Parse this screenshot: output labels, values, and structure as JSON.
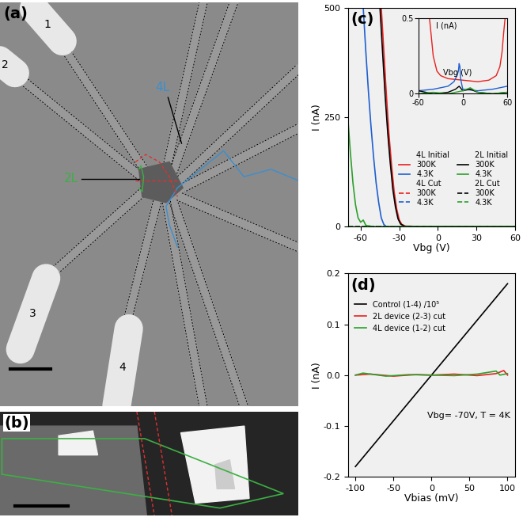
{
  "chart_data": [
    {
      "type": "line",
      "panel_label": "(c)",
      "x_label": "Vbg (V)",
      "y_label": "I (nA)",
      "xlim": [
        -70,
        60
      ],
      "ylim": [
        0,
        500
      ],
      "xticks": [
        -60,
        -30,
        0,
        30,
        60
      ],
      "yticks": [
        0,
        250,
        500
      ],
      "legend": "lower right",
      "legend_groups": [
        "4L Initial",
        "4L Cut",
        "2L Initial",
        "2L Cut"
      ],
      "series": [
        {
          "name": "300K",
          "group": "4L Initial",
          "color": "#e8201e",
          "line_style": "solid",
          "x": [
            -44,
            -42,
            -40,
            -38,
            -36,
            -34,
            -32,
            -30,
            -28,
            -25,
            0,
            30,
            60
          ],
          "values": [
            500,
            400,
            300,
            210,
            140,
            80,
            40,
            15,
            5,
            1,
            0,
            0,
            0
          ]
        },
        {
          "name": "4.3K",
          "group": "4L Initial",
          "color": "#1f5fd0",
          "line_style": "solid",
          "x": [
            -58,
            -56,
            -54,
            -52,
            -50,
            -48,
            -46,
            -44,
            -42,
            -40,
            0,
            60
          ],
          "values": [
            500,
            400,
            310,
            230,
            160,
            100,
            55,
            20,
            5,
            0,
            0,
            0
          ]
        },
        {
          "name": "300K",
          "group": "4L Cut",
          "color": "#e8201e",
          "line_style": "dashed",
          "x": [
            -70,
            60
          ],
          "values": [
            0,
            0
          ]
        },
        {
          "name": "4.3K",
          "group": "4L Cut",
          "color": "#1f5fd0",
          "line_style": "dashed",
          "x": [
            -70,
            60
          ],
          "values": [
            0,
            0
          ]
        },
        {
          "name": "300K",
          "group": "2L Initial",
          "color": "#000000",
          "line_style": "solid",
          "x": [
            -45,
            -43,
            -41,
            -39,
            -37,
            -35,
            -33,
            -31,
            -29,
            -26,
            0,
            30,
            60
          ],
          "values": [
            500,
            400,
            300,
            215,
            145,
            85,
            45,
            18,
            6,
            1,
            0,
            0,
            0
          ]
        },
        {
          "name": "4.3K",
          "group": "2L Initial",
          "color": "#2ca02c",
          "line_style": "solid",
          "x": [
            -70,
            -68,
            -66,
            -64,
            -62,
            -60,
            -58,
            -56,
            -50,
            0,
            60
          ],
          "values": [
            250,
            170,
            100,
            50,
            20,
            10,
            15,
            3,
            0,
            0,
            0
          ]
        },
        {
          "name": "300K",
          "group": "2L Cut",
          "color": "#000000",
          "line_style": "dashed",
          "x": [
            -70,
            60
          ],
          "values": [
            0,
            0
          ]
        },
        {
          "name": "4.3K",
          "group": "2L Cut",
          "color": "#2ca02c",
          "line_style": "dashed",
          "x": [
            -70,
            60
          ],
          "values": [
            0,
            0
          ]
        }
      ],
      "inset": {
        "type": "line",
        "x_label": "Vbg (V)",
        "y_label": "I (nA)",
        "xlim": [
          -60,
          60
        ],
        "ylim": [
          0,
          0.5
        ],
        "xticks": [
          -60,
          0,
          60
        ],
        "yticks": [
          0,
          0.5
        ],
        "series": [
          {
            "color": "#e8201e",
            "line_style": "solid",
            "x": [
              -45,
              -42,
              -40,
              -35,
              -30,
              -20,
              0,
              20,
              35,
              45,
              50,
              53,
              55,
              57
            ],
            "values": [
              0.5,
              0.35,
              0.25,
              0.15,
              0.12,
              0.1,
              0.09,
              0.08,
              0.09,
              0.12,
              0.18,
              0.28,
              0.4,
              0.5
            ]
          },
          {
            "color": "#1f5fd0",
            "line_style": "solid",
            "x": [
              -60,
              -40,
              -20,
              -12,
              -8,
              -6,
              -5,
              -4,
              -3,
              -1,
              0,
              20,
              40,
              60
            ],
            "values": [
              0.02,
              0.03,
              0.05,
              0.08,
              0.12,
              0.15,
              0.2,
              0.18,
              0.1,
              0.05,
              0.03,
              0.02,
              0.03,
              0.05
            ]
          },
          {
            "color": "#000000",
            "line_style": "solid",
            "x": [
              -60,
              -40,
              -20,
              -10,
              -5,
              0,
              10,
              20,
              40,
              60
            ],
            "values": [
              0.02,
              0.0,
              0.01,
              0.03,
              0.05,
              0.02,
              0.03,
              0.01,
              0.0,
              0.01
            ]
          },
          {
            "color": "#2ca02c",
            "line_style": "solid",
            "x": [
              -60,
              -40,
              -20,
              0,
              10,
              20,
              40,
              60
            ],
            "values": [
              0.0,
              0.01,
              0.0,
              0.02,
              0.04,
              0.01,
              0.0,
              0.01
            ]
          }
        ]
      }
    },
    {
      "type": "line",
      "panel_label": "(d)",
      "x_label": "Vbias (mV)",
      "y_label": "I (nA)",
      "xlim": [
        -110,
        110
      ],
      "ylim": [
        -0.2,
        0.2
      ],
      "xticks": [
        -100,
        -50,
        0,
        50,
        100
      ],
      "yticks": [
        -0.2,
        -0.1,
        {
          "value": 0,
          "label": "0.0"
        },
        0.1,
        0.2
      ],
      "legend": "upper left",
      "annotation": "Vbg= -70V, T = 4K",
      "series": [
        {
          "name": "Control (1-4) /10⁵",
          "color": "#000000",
          "line_style": "solid",
          "x": [
            -100,
            100
          ],
          "values": [
            -0.18,
            0.18
          ]
        },
        {
          "name": "2L device (2-3) cut",
          "color": "#e8201e",
          "line_style": "solid",
          "x": [
            -100,
            -80,
            -50,
            -20,
            0,
            30,
            60,
            85,
            90,
            95,
            100
          ],
          "values": [
            0.0,
            0.002,
            -0.002,
            0.001,
            0.0,
            0.002,
            -0.001,
            0.003,
            0.006,
            0.009,
            0.0
          ]
        },
        {
          "name": "4L device (1-2) cut",
          "color": "#2ca02c",
          "line_style": "solid",
          "x": [
            -100,
            -90,
            -60,
            -30,
            0,
            30,
            60,
            85,
            90,
            100
          ],
          "values": [
            0.0,
            0.004,
            -0.002,
            0.001,
            0.0,
            -0.001,
            0.002,
            0.008,
            0.0,
            0.003
          ]
        }
      ]
    }
  ],
  "images": [
    {
      "panel_label": "(a)",
      "labels": [
        {
          "text": "1"
        },
        {
          "text": "2"
        },
        {
          "text": "3"
        },
        {
          "text": "4"
        },
        {
          "text": "4L",
          "color": "#3a8fd0"
        },
        {
          "text": "2L",
          "color": "#3cb043"
        }
      ]
    },
    {
      "panel_label": "(b)"
    }
  ]
}
